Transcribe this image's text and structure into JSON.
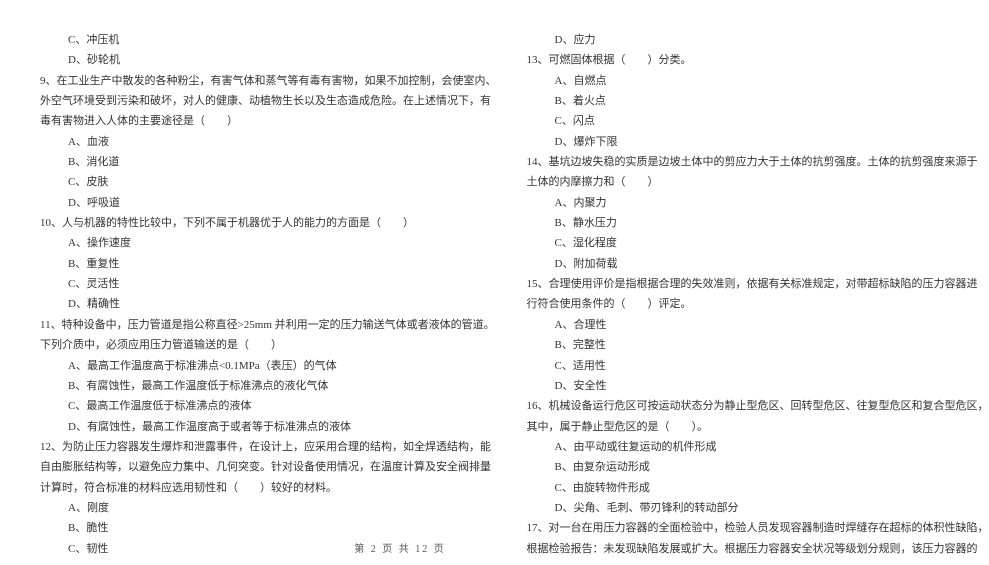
{
  "leftColumn": [
    {
      "cls": "indent-opt",
      "text": "C、冲压机"
    },
    {
      "cls": "indent-opt",
      "text": "D、砂轮机"
    },
    {
      "cls": "indent-q",
      "text": "9、在工业生产中散发的各种粉尘，有害气体和蒸气等有毒有害物，如果不加控制，会使室内、"
    },
    {
      "cls": "indent-sub",
      "text": "外空气环境受到污染和破坏，对人的健康、动植物生长以及生态造成危险。在上述情况下，有"
    },
    {
      "cls": "indent-sub",
      "text": "毒有害物进入人体的主要途径是（　　）"
    },
    {
      "cls": "indent-opt",
      "text": "A、血液"
    },
    {
      "cls": "indent-opt",
      "text": "B、消化道"
    },
    {
      "cls": "indent-opt",
      "text": "C、皮肤"
    },
    {
      "cls": "indent-opt",
      "text": "D、呼吸道"
    },
    {
      "cls": "indent-q",
      "text": "10、人与机器的特性比较中，下列不属于机器优于人的能力的方面是（　　）"
    },
    {
      "cls": "indent-opt",
      "text": "A、操作速度"
    },
    {
      "cls": "indent-opt",
      "text": "B、重复性"
    },
    {
      "cls": "indent-opt",
      "text": "C、灵活性"
    },
    {
      "cls": "indent-opt",
      "text": "D、精确性"
    },
    {
      "cls": "indent-q",
      "text": "11、特种设备中，压力管道是指公称直径>25mm 并利用一定的压力输送气体或者液体的管道。"
    },
    {
      "cls": "indent-sub",
      "text": "下列介质中，必须应用压力管道输送的是（　　）"
    },
    {
      "cls": "indent-opt",
      "text": "A、最高工作温度高于标准沸点<0.1MPa（表压）的气体"
    },
    {
      "cls": "indent-opt",
      "text": "B、有腐蚀性，最高工作温度低于标准沸点的液化气体"
    },
    {
      "cls": "indent-opt",
      "text": "C、最高工作温度低于标准沸点的液体"
    },
    {
      "cls": "indent-opt",
      "text": "D、有腐蚀性，最高工作温度高于或者等于标准沸点的液体"
    },
    {
      "cls": "indent-q",
      "text": "12、为防止压力容器发生爆炸和泄露事件，在设计上，应采用合理的结构，如全焊透结构，能"
    },
    {
      "cls": "indent-sub",
      "text": "自由膨胀结构等，以避免应力集中、几何突变。针对设备使用情况，在温度计算及安全阀排量"
    },
    {
      "cls": "indent-sub",
      "text": "计算时，符合标准的材料应选用韧性和（　　）较好的材料。"
    },
    {
      "cls": "indent-opt",
      "text": "A、刚度"
    },
    {
      "cls": "indent-opt",
      "text": "B、脆性"
    },
    {
      "cls": "indent-opt",
      "text": "C、韧性"
    }
  ],
  "rightColumn": [
    {
      "cls": "indent-opt",
      "text": "D、应力"
    },
    {
      "cls": "indent-q",
      "text": "13、可燃固体根据（　　）分类。"
    },
    {
      "cls": "indent-opt",
      "text": "A、自燃点"
    },
    {
      "cls": "indent-opt",
      "text": "B、着火点"
    },
    {
      "cls": "indent-opt",
      "text": "C、闪点"
    },
    {
      "cls": "indent-opt",
      "text": "D、爆炸下限"
    },
    {
      "cls": "indent-q",
      "text": "14、基坑边坡失稳的实质是边坡土体中的剪应力大于土体的抗剪强度。土体的抗剪强度来源于"
    },
    {
      "cls": "indent-sub",
      "text": "土体的内摩擦力和（　　）"
    },
    {
      "cls": "indent-opt",
      "text": "A、内聚力"
    },
    {
      "cls": "indent-opt",
      "text": "B、静水压力"
    },
    {
      "cls": "indent-opt",
      "text": "C、湿化程度"
    },
    {
      "cls": "indent-opt",
      "text": "D、附加荷载"
    },
    {
      "cls": "indent-q",
      "text": "15、合理使用评价是指根据合理的失效准则，依据有关标准规定，对带超标缺陷的压力容器进"
    },
    {
      "cls": "indent-sub",
      "text": "行符合使用条件的（　　）评定。"
    },
    {
      "cls": "indent-opt",
      "text": "A、合理性"
    },
    {
      "cls": "indent-opt",
      "text": "B、完整性"
    },
    {
      "cls": "indent-opt",
      "text": "C、适用性"
    },
    {
      "cls": "indent-opt",
      "text": "D、安全性"
    },
    {
      "cls": "indent-q",
      "text": "16、机械设备运行危区可按运动状态分为静止型危区、回转型危区、往复型危区和复合型危区，"
    },
    {
      "cls": "indent-sub",
      "text": "其中，属于静止型危区的是（　　）。"
    },
    {
      "cls": "indent-opt",
      "text": "A、由平动或往复运动的机件形成"
    },
    {
      "cls": "indent-opt",
      "text": "B、由复杂运动形成"
    },
    {
      "cls": "indent-opt",
      "text": "C、由旋转物件形成"
    },
    {
      "cls": "indent-opt",
      "text": "D、尖角、毛刺、带刃锋利的转动部分"
    },
    {
      "cls": "indent-q",
      "text": "17、对一台在用压力容器的全面检验中，检验人员发现容器制造时焊缝存在超标的体积性缺陷，"
    },
    {
      "cls": "indent-sub",
      "text": "根据检验报告：未发现缺陷发展或扩大。根据压力容器安全状况等级划分规则，该压力容器的"
    }
  ],
  "footer": "第 2 页 共 12 页"
}
